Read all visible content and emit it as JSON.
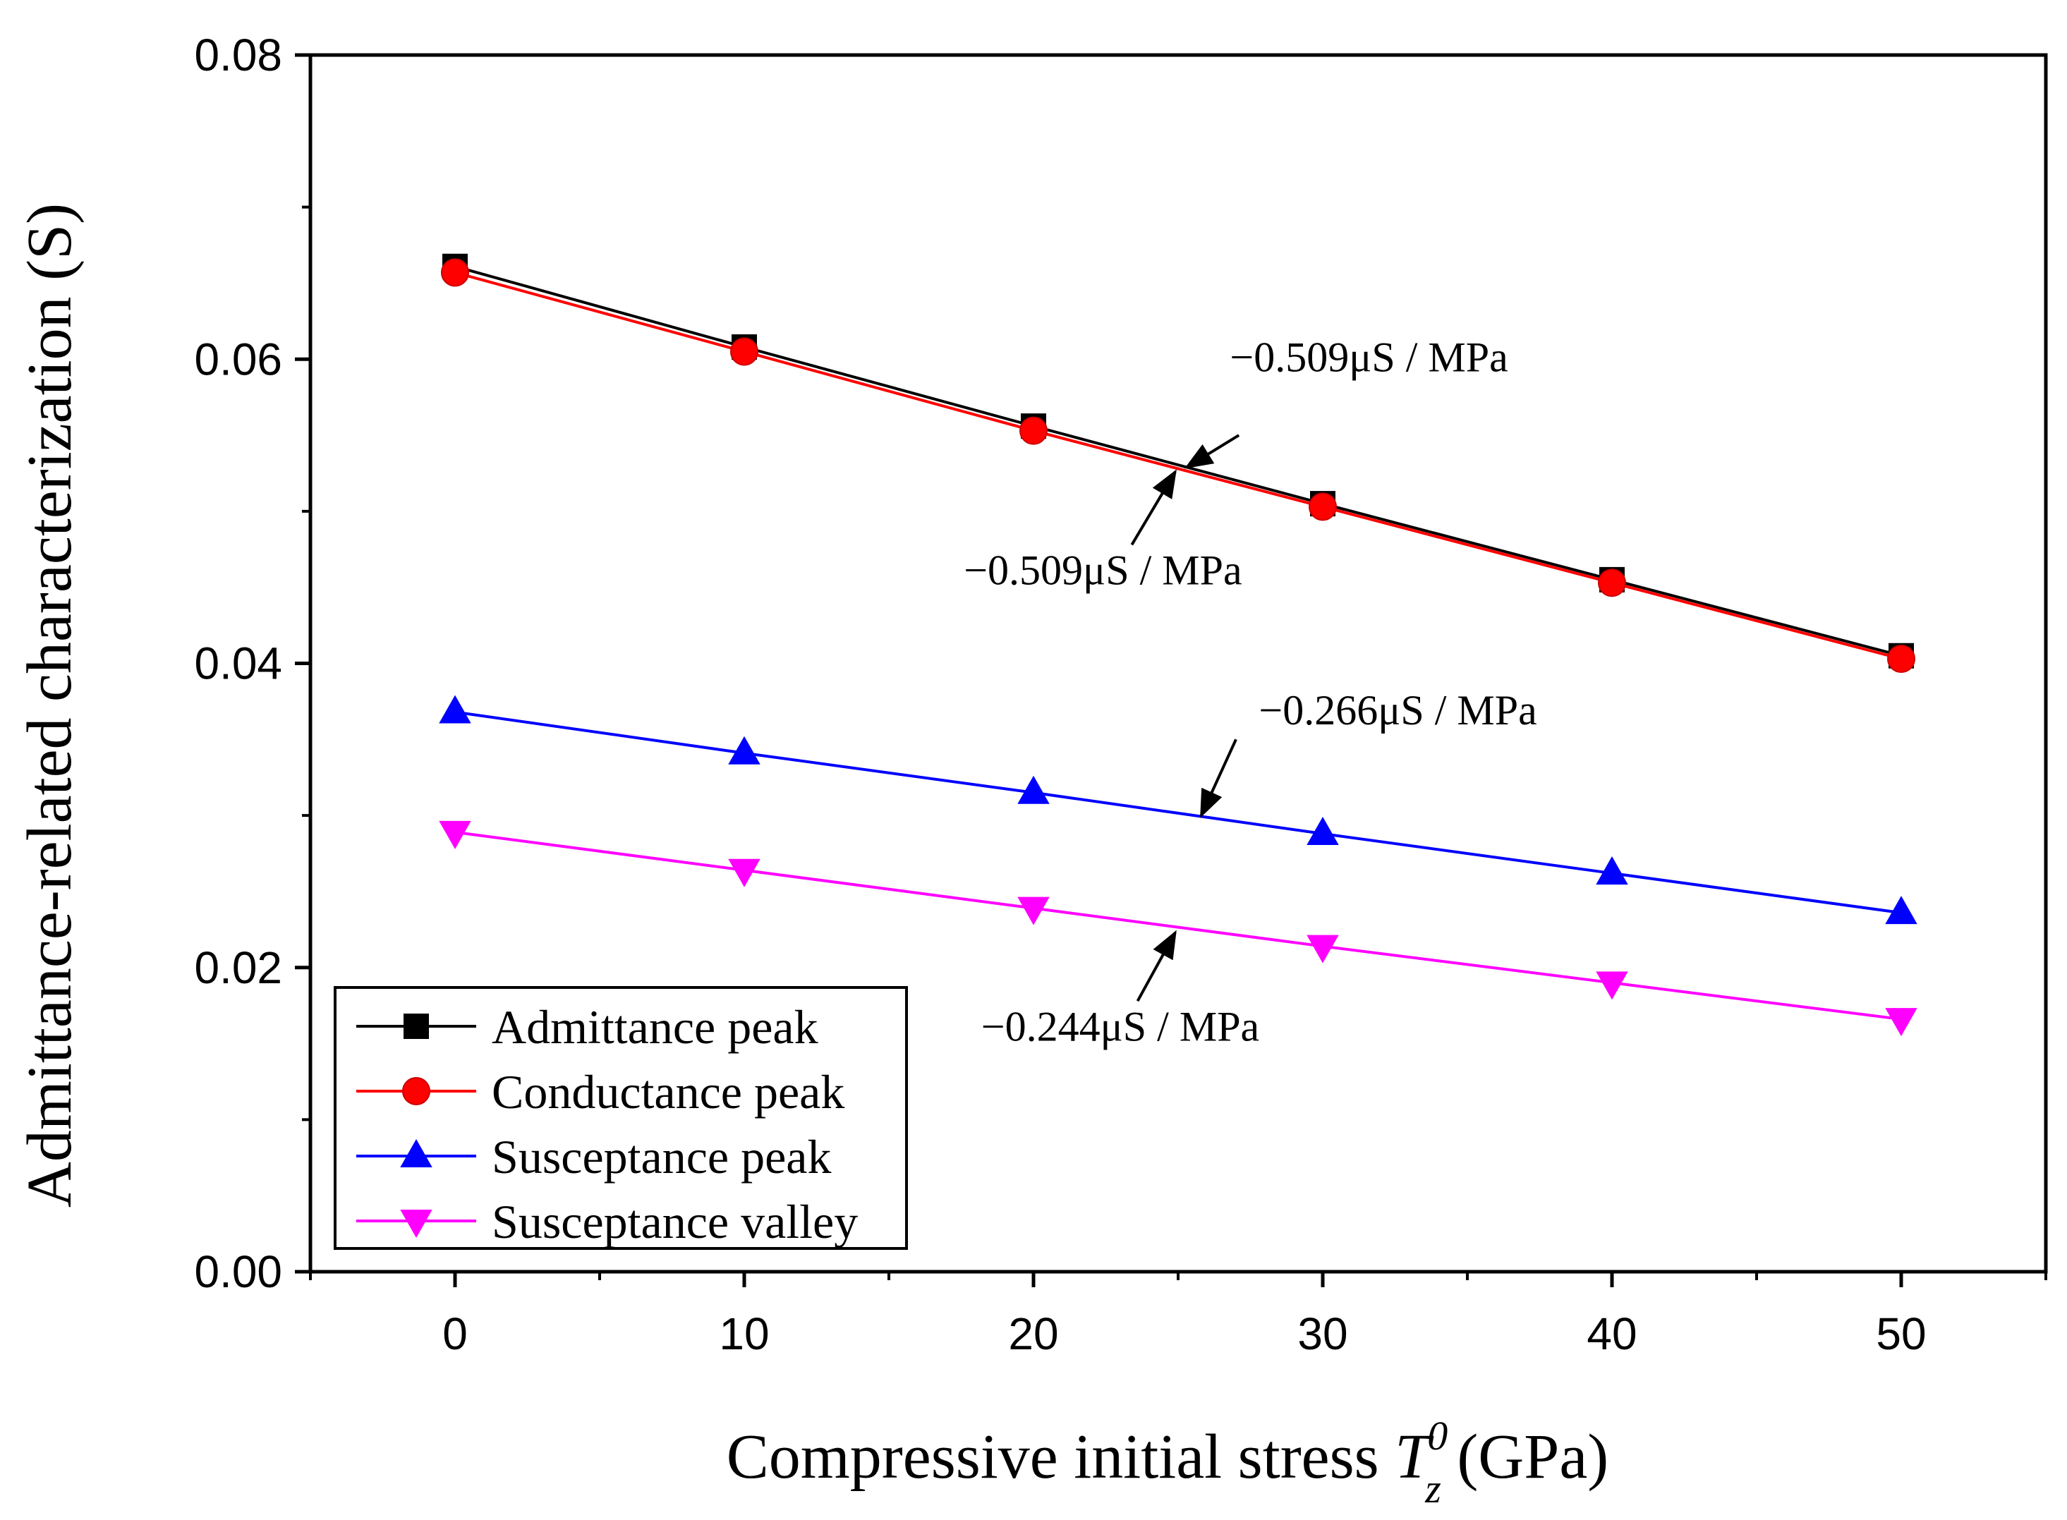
{
  "chart_data": {
    "type": "line",
    "title": "",
    "xlabel": {
      "prefix": "Compressive initial stress ",
      "symbol": "T",
      "subscript": "z",
      "superscript": "0",
      "suffix": " (GPa)"
    },
    "ylabel": "Admittance-related characterization (S)",
    "x": [
      0,
      10,
      20,
      30,
      40,
      50
    ],
    "xlim": [
      -5,
      55
    ],
    "ylim": [
      0,
      0.08
    ],
    "xticks": [
      "0",
      "10",
      "20",
      "30",
      "40",
      "50"
    ],
    "yticks": [
      "0.00",
      "0.02",
      "0.04",
      "0.06",
      "0.08"
    ],
    "grid": false,
    "legend_position": "bottom-left",
    "series": [
      {
        "name": "Admittance peak",
        "marker": "square",
        "color": "#000000",
        "values": [
          0.0661,
          0.0608,
          0.0556,
          0.0505,
          0.0455,
          0.0405
        ]
      },
      {
        "name": "Conductance peak",
        "marker": "circle",
        "color": "#ff0000",
        "values": [
          0.0657,
          0.0605,
          0.0553,
          0.0503,
          0.0453,
          0.0403
        ]
      },
      {
        "name": "Susceptance peak",
        "marker": "triangle-up",
        "color": "#0000ff",
        "values": [
          0.0368,
          0.0341,
          0.0315,
          0.0288,
          0.0262,
          0.0236
        ]
      },
      {
        "name": "Susceptance valley",
        "marker": "triangle-down",
        "color": "#ff00ff",
        "values": [
          0.0289,
          0.0264,
          0.0239,
          0.0214,
          0.019,
          0.0166
        ]
      }
    ],
    "annotations": [
      {
        "text": "−0.509μS / MPa",
        "label_at": [
          31.6,
          0.0592
        ],
        "arrow_from": [
          27.1,
          0.055
        ],
        "arrow_to": [
          25.3,
          0.0529
        ]
      },
      {
        "text": "−0.509μS / MPa",
        "label_at": [
          22.4,
          0.0452
        ],
        "arrow_from": [
          23.4,
          0.0478
        ],
        "arrow_to": [
          24.9,
          0.0526
        ]
      },
      {
        "text": "−0.266μS / MPa",
        "label_at": [
          32.6,
          0.036
        ],
        "arrow_from": [
          27.0,
          0.035
        ],
        "arrow_to": [
          25.8,
          0.03
        ]
      },
      {
        "text": "−0.244μS / MPa",
        "label_at": [
          23.0,
          0.0152
        ],
        "arrow_from": [
          23.6,
          0.0178
        ],
        "arrow_to": [
          24.9,
          0.0223
        ]
      }
    ]
  }
}
